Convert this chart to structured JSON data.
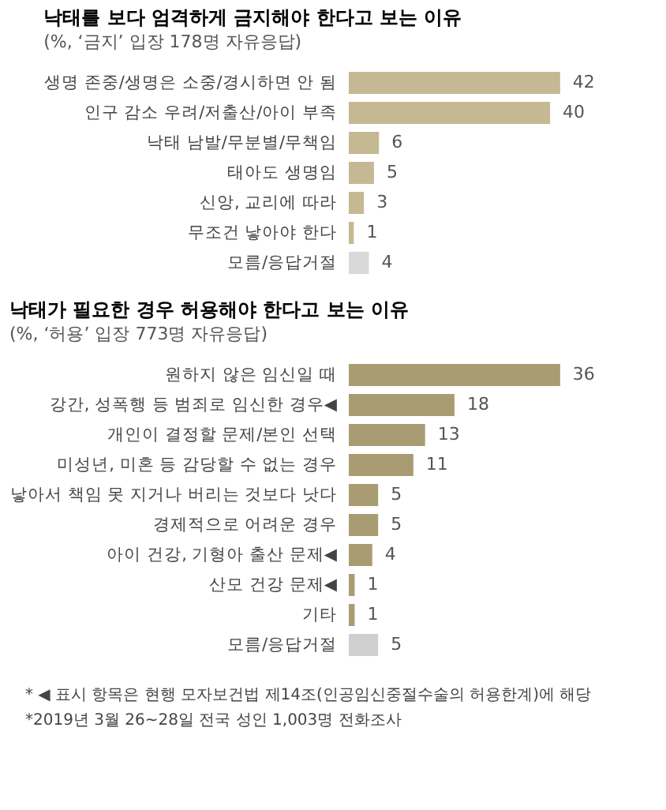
{
  "chart_data": [
    {
      "type": "bar",
      "orientation": "horizontal",
      "title": "낙태를 보다 엄격하게 금지해야 한다고 보는 이유",
      "subtitle": "(%, ‘금지’ 입장 178명 자유응답)",
      "categories": [
        "생명 존중/생명은 소중/경시하면 안 됨",
        "인구 감소 우려/저출산/아이 부족",
        "낙태 남발/무분별/무책임",
        "태아도 생명임",
        "신앙, 교리에 따라",
        "무조건 낳아야 한다",
        "모름/응답거절"
      ],
      "values": [
        42,
        40,
        6,
        5,
        3,
        1,
        4
      ],
      "colors": [
        "#c5b993",
        "#c5b993",
        "#c5b993",
        "#c5b993",
        "#c5b993",
        "#c5b993",
        "#d9d9d9"
      ],
      "data_labels": true,
      "tick_labels": "y"
    },
    {
      "type": "bar",
      "orientation": "horizontal",
      "title": "낙태가 필요한 경우 허용해야 한다고 보는 이유",
      "subtitle": "(%, ‘허용’ 입장 773명 자유응답)",
      "categories": [
        "원하지 않은 임신일 때",
        "강간, 성폭행 등 범죄로 임신한 경우◀",
        "개인이 결정할 문제/본인 선택",
        "미성년, 미혼 등 감당할 수 없는 경우",
        "낳아서 책임 못 지거나 버리는 것보다 낫다",
        "경제적으로 어려운 경우",
        "아이 건강, 기형아 출산 문제◀",
        "산모 건강 문제◀",
        "기타",
        "모름/응답거절"
      ],
      "values": [
        36,
        18,
        13,
        11,
        5,
        5,
        4,
        1,
        1,
        5
      ],
      "colors": [
        "#a99c72",
        "#a99c72",
        "#a99c72",
        "#a99c72",
        "#a99c72",
        "#a99c72",
        "#a99c72",
        "#a99c72",
        "#a99c72",
        "#cfcfcf"
      ],
      "data_labels": true,
      "tick_labels": "y",
      "annotations": [
        "* ◀ 표시 항목은 현행 모자보건법 제14조(인공임신중절수술의 허용한계)에 해당",
        "*2019년 3월 26~28일 전국 성인 1,003명 전화조사"
      ]
    }
  ]
}
